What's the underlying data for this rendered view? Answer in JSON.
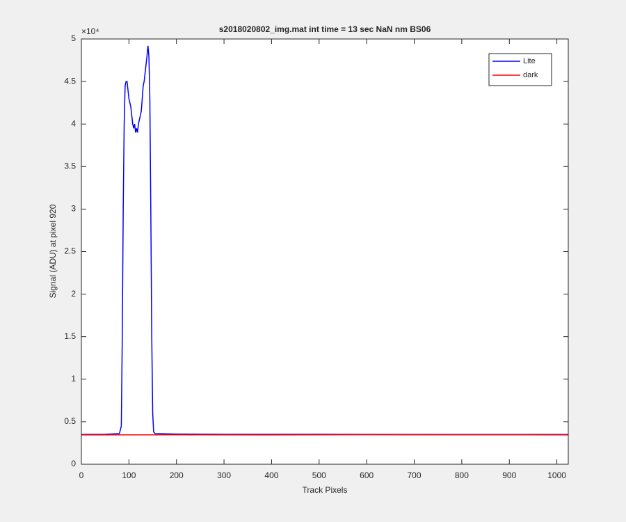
{
  "chart_data": {
    "type": "line",
    "title": "s2018020802_img.mat int time = 13 sec  NaN nm BS06",
    "x_label": "Track Pixels",
    "y_label": "Signal (ADU) at pixel 920",
    "y_exponent": "×10⁴",
    "xlim": [
      0,
      1024
    ],
    "ylim": [
      0,
      5
    ],
    "xticks": [
      0,
      100,
      200,
      300,
      400,
      500,
      600,
      700,
      800,
      900,
      1000
    ],
    "yticks": [
      0,
      0.5,
      1,
      1.5,
      2,
      2.5,
      3,
      3.5,
      4,
      4.5,
      5
    ],
    "legend": "top-right",
    "series": [
      {
        "name": "Lite",
        "color": "#0000ff",
        "x": [
          0,
          50,
          80,
          84,
          86,
          88,
          90,
          92,
          94,
          96,
          98,
          100,
          102,
          104,
          106,
          108,
          110,
          112,
          114,
          116,
          118,
          120,
          122,
          124,
          126,
          128,
          130,
          132,
          134,
          136,
          138,
          140,
          142,
          144,
          146,
          148,
          150,
          152,
          155,
          200,
          300,
          500,
          700,
          1024
        ],
        "values": [
          0.35,
          0.352,
          0.36,
          0.45,
          1.5,
          3.0,
          4.0,
          4.45,
          4.5,
          4.5,
          4.4,
          4.3,
          4.25,
          4.2,
          4.1,
          4.0,
          3.95,
          4.0,
          3.9,
          3.95,
          3.9,
          4.0,
          4.05,
          4.1,
          4.15,
          4.3,
          4.45,
          4.5,
          4.6,
          4.7,
          4.8,
          4.92,
          4.8,
          4.3,
          3.0,
          1.5,
          0.6,
          0.38,
          0.36,
          0.355,
          0.352,
          0.352,
          0.35,
          0.35
        ]
      },
      {
        "name": "dark",
        "color": "#ff0000",
        "x": [
          0,
          200,
          400,
          600,
          800,
          1024
        ],
        "values": [
          0.345,
          0.346,
          0.345,
          0.347,
          0.346,
          0.345
        ]
      }
    ]
  }
}
